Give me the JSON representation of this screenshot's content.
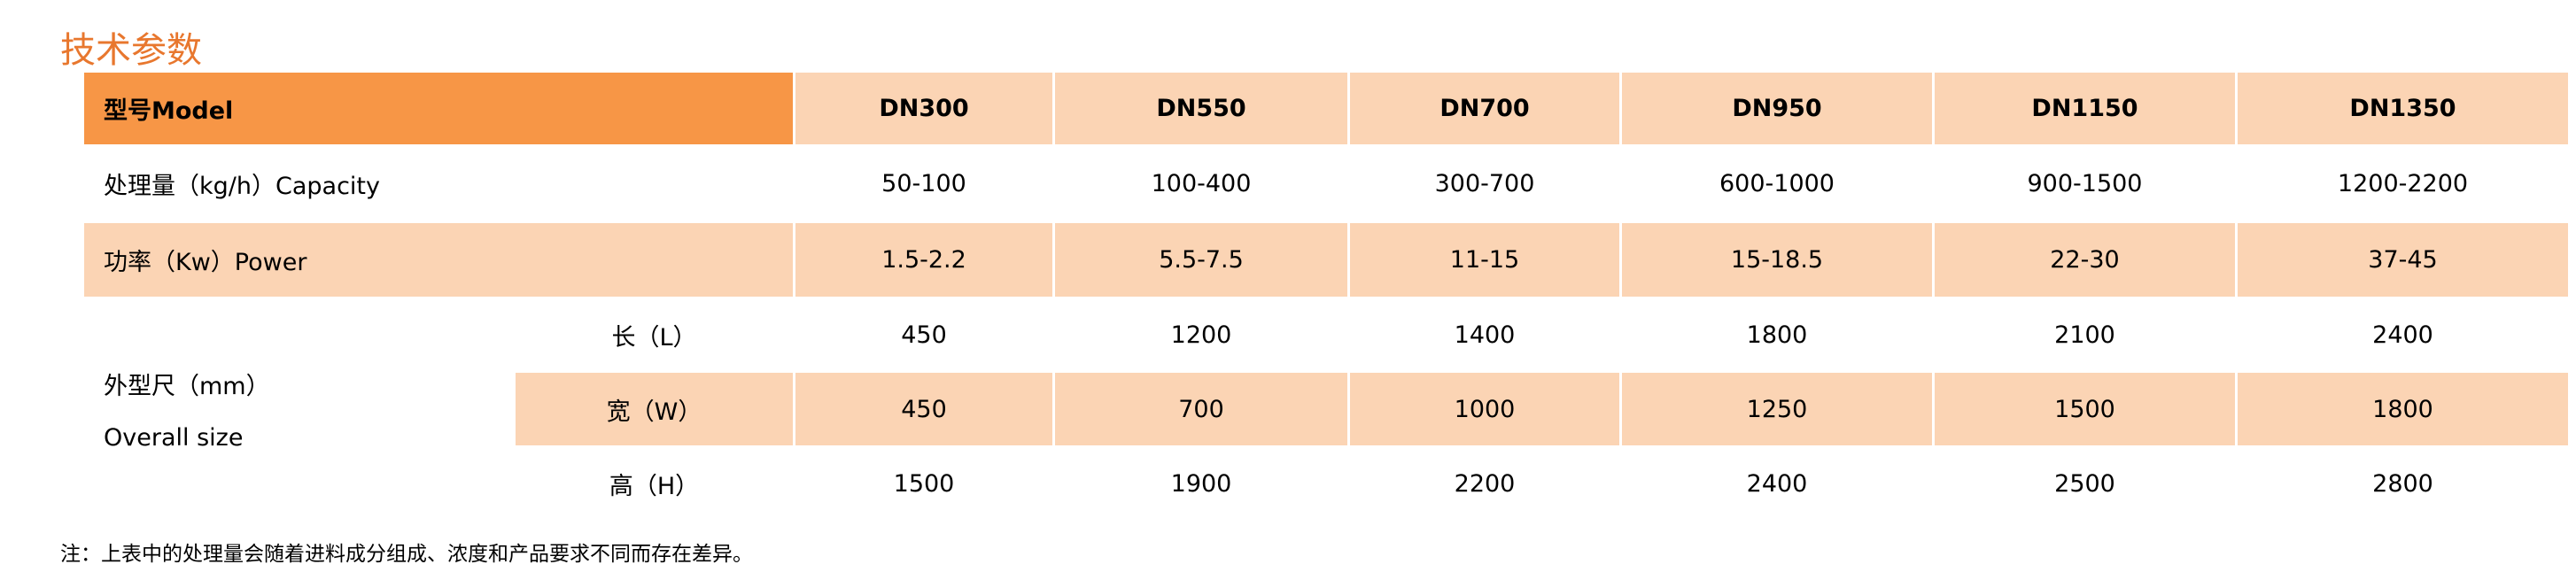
{
  "header": {
    "title": "技术参数"
  },
  "table": {
    "columns": [
      "型号Model",
      "DN300",
      "DN550",
      "DN700",
      "DN950",
      "DN1150",
      "DN1350"
    ],
    "rows": [
      {
        "label": "处理量（kg/h）Capacity",
        "values": [
          "50-100",
          "100-400",
          "300-700",
          "600-1000",
          "900-1500",
          "1200-2200"
        ]
      },
      {
        "label": "功率（Kw）Power",
        "values": [
          "1.5-2.2",
          "5.5-7.5",
          "11-15",
          "15-18.5",
          "22-30",
          "37-45"
        ]
      }
    ],
    "size": {
      "label": [
        "外型尺（mm）",
        "Overall size"
      ],
      "rows": [
        {
          "label": "长（L）",
          "values": [
            "450",
            "1200",
            "1400",
            "1800",
            "2100",
            "2400"
          ]
        },
        {
          "label": "宽（W）",
          "values": [
            "450",
            "700",
            "1000",
            "1250",
            "1500",
            "1800"
          ]
        },
        {
          "label": "高（H）",
          "values": [
            "1500",
            "1900",
            "2200",
            "2400",
            "2500",
            "2800"
          ]
        }
      ]
    }
  },
  "note": "注：上表中的处理量会随着进料成分组成、浓度和产品要求不同而存在差异。"
}
